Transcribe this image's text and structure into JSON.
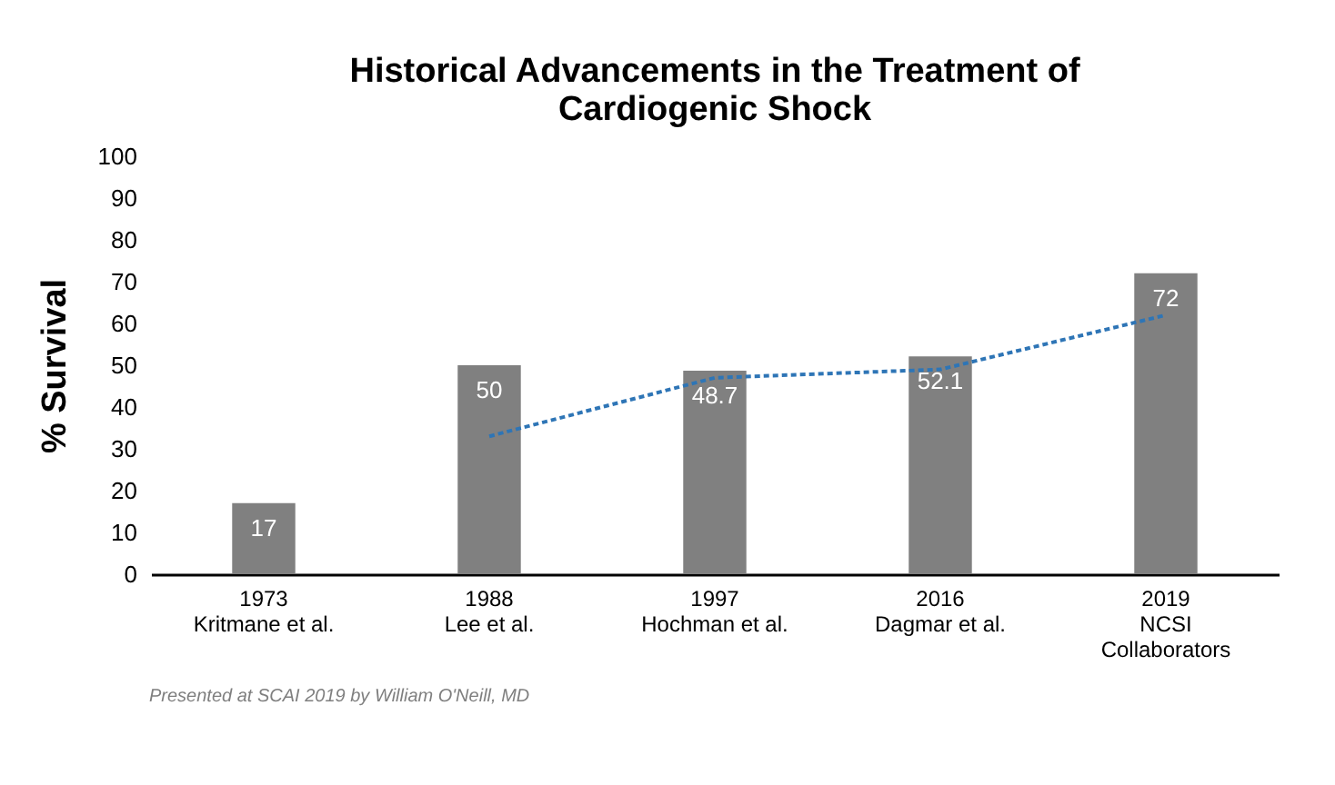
{
  "chart_data": {
    "type": "bar",
    "title": "Historical Advancements in the Treatment of\nCardiogenic Shock",
    "ylabel": "% Survival",
    "categories": [
      "1973\nKritmane et al.",
      "1988\nLee et al.",
      "1997\nHochman et al.",
      "2016\nDagmar et al.",
      "2019\nNCSI\nCollaborators"
    ],
    "series": [
      {
        "color": "#808080",
        "values": [
          17,
          50,
          48.7,
          52.1,
          72
        ],
        "value_labels": [
          "17",
          "50",
          "48.7",
          "52.1",
          "72"
        ]
      },
      {
        "type": "line",
        "color": "#2e75b6",
        "line_style": "dashed",
        "values": [
          null,
          33,
          47,
          49,
          62
        ]
      }
    ],
    "ylim": [
      0,
      100
    ],
    "yticks": [
      0,
      10,
      20,
      30,
      40,
      50,
      60,
      70,
      80,
      90,
      100
    ],
    "grid": false,
    "annotations": [
      "Presented at SCAI 2019 by William O'Neill, MD"
    ]
  }
}
